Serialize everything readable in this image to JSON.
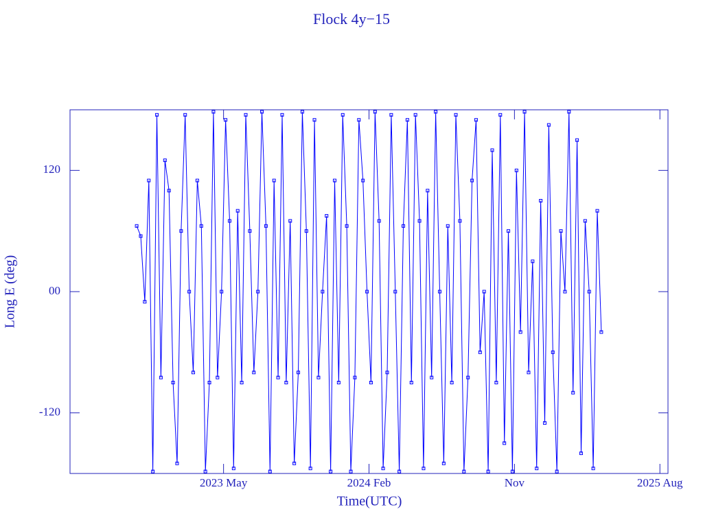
{
  "chart_data": {
    "type": "line",
    "title": "Flock 4y−15",
    "x_label": "Time(UTC)",
    "y_label": "Long E (deg)",
    "xlim": [
      "2022-08",
      "2025-09"
    ],
    "xticks": [
      {
        "value": "2023-05",
        "label": "2023 May"
      },
      {
        "value": "2024-02",
        "label": "2024 Feb"
      },
      {
        "value": "2024-11",
        "label": "Nov"
      },
      {
        "value": "2025-08",
        "label": "2025 Aug"
      }
    ],
    "ylim": [
      -180,
      180
    ],
    "yticks": [
      -120,
      {
        "value": 0,
        "label": "00"
      },
      120
    ],
    "x": [
      "2022-12",
      "2022-12",
      "2022-12",
      "2022-12",
      "2023-01",
      "2023-01",
      "2023-01",
      "2023-01",
      "2023-02",
      "2023-02",
      "2023-02",
      "2023-02",
      "2023-03",
      "2023-03",
      "2023-03",
      "2023-03",
      "2023-04",
      "2023-04",
      "2023-04",
      "2023-04",
      "2023-05",
      "2023-05",
      "2023-05",
      "2023-05",
      "2023-06",
      "2023-06",
      "2023-06",
      "2023-06",
      "2023-07",
      "2023-07",
      "2023-07",
      "2023-07",
      "2023-08",
      "2023-08",
      "2023-08",
      "2023-08",
      "2023-09",
      "2023-09",
      "2023-09",
      "2023-09",
      "2023-10",
      "2023-10",
      "2023-10",
      "2023-10",
      "2023-11",
      "2023-11",
      "2023-11",
      "2023-11",
      "2023-12",
      "2023-12",
      "2023-12",
      "2023-12",
      "2024-01",
      "2024-01",
      "2024-01",
      "2024-01",
      "2024-02",
      "2024-02",
      "2024-02",
      "2024-02",
      "2024-03",
      "2024-03",
      "2024-03",
      "2024-03",
      "2024-04",
      "2024-04",
      "2024-04",
      "2024-04",
      "2024-05",
      "2024-05",
      "2024-05",
      "2024-05",
      "2024-06",
      "2024-06",
      "2024-06",
      "2024-06",
      "2024-07",
      "2024-07",
      "2024-07",
      "2024-07",
      "2024-08",
      "2024-08",
      "2024-08",
      "2024-08",
      "2024-09",
      "2024-09",
      "2024-09",
      "2024-09",
      "2024-10",
      "2024-10",
      "2024-10",
      "2024-10",
      "2024-11",
      "2024-11",
      "2024-11",
      "2024-11",
      "2024-12",
      "2024-12",
      "2024-12",
      "2024-12",
      "2025-01",
      "2025-01",
      "2025-01",
      "2025-01",
      "2025-02",
      "2025-02",
      "2025-02",
      "2025-02",
      "2025-03",
      "2025-03",
      "2025-03",
      "2025-03",
      "2025-04",
      "2025-04",
      "2025-04",
      "2025-04"
    ],
    "series": [
      {
        "name": "Long E",
        "color": "#0000ff",
        "values": [
          65,
          55,
          -10,
          110,
          -178,
          175,
          -85,
          130,
          100,
          -90,
          -170,
          60,
          175,
          0,
          -80,
          110,
          65,
          -178,
          -90,
          178,
          -85,
          0,
          170,
          70,
          -175,
          80,
          -90,
          175,
          60,
          -80,
          0,
          178,
          65,
          -178,
          110,
          -85,
          175,
          -90,
          70,
          -170,
          -80,
          178,
          60,
          -175,
          170,
          -85,
          0,
          75,
          -178,
          110,
          -90,
          175,
          65,
          -178,
          -85,
          170,
          110,
          0,
          -90,
          178,
          70,
          -175,
          -80,
          175,
          0,
          -178,
          65,
          170,
          -90,
          175,
          70,
          -175,
          100,
          -85,
          178,
          0,
          -170,
          65,
          -90,
          175,
          70,
          -178,
          -85,
          110,
          170,
          -60,
          0,
          -178,
          140,
          -90,
          175,
          -150,
          60,
          -178,
          120,
          -40,
          178,
          -80,
          30,
          -175,
          90,
          -130,
          165,
          -60,
          -178,
          60,
          0,
          178,
          -100,
          150,
          -160,
          70,
          0,
          -175,
          80,
          -40
        ]
      }
    ],
    "axis_color": "#2222bb"
  }
}
